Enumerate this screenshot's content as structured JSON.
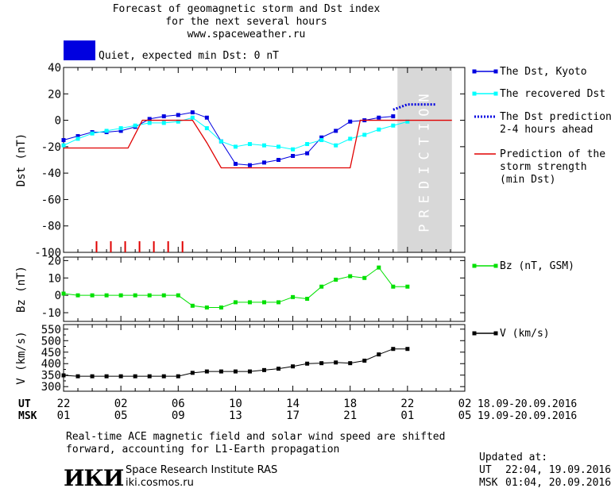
{
  "header": {
    "title_line1": "Forecast of geomagnetic storm and Dst index",
    "title_line2": "for the next several hours",
    "url": "www.spaceweather.ru",
    "status": "Quiet, expected min Dst: 0 nT",
    "status_color": "#0000e0"
  },
  "footer": {
    "note_line1": "Real-time ACE magnetic field and solar wind speed are shifted",
    "note_line2": "forward, accounting for L1-Earth propagation",
    "logo_text": "ИКИ",
    "org_name": "Space Research Institute RAS",
    "org_url": "iki.cosmos.ru",
    "updated_label": "Updated at:",
    "updated_ut_label": "UT",
    "updated_ut": "22:04, 19.09.2016",
    "updated_msk_label": "MSK",
    "updated_msk": "01:04, 20.09.2016"
  },
  "time_axis": {
    "ut_label": "UT",
    "msk_label": "MSK",
    "ut_ticks": [
      "22",
      "02",
      "06",
      "10",
      "14",
      "18",
      "22",
      "02"
    ],
    "msk_ticks": [
      "01",
      "05",
      "09",
      "13",
      "17",
      "21",
      "01",
      "05"
    ],
    "ut_range": "18.09-20.09.2016",
    "msk_range": "19.09-20.09.2016"
  },
  "chart_data": [
    {
      "type": "line",
      "ylabel": "Dst (nT)",
      "ylim": [
        -100,
        40
      ],
      "yticks": [
        40,
        20,
        0,
        -20,
        -40,
        -60,
        -80,
        -100
      ],
      "xlim": [
        0,
        28
      ],
      "prediction_label": "PREDICTION",
      "prediction_range": [
        23.3,
        27.1
      ],
      "storm_marks": [
        2.3,
        3.3,
        4.3,
        5.3,
        6.3,
        7.3,
        8.3
      ],
      "series": [
        {
          "name": "The Dst, Kyoto",
          "color": "#0000e0",
          "x": [
            0,
            1,
            2,
            3,
            4,
            5,
            6,
            7,
            8,
            9,
            10,
            11,
            12,
            13,
            14,
            15,
            16,
            17,
            18,
            19,
            20,
            21,
            22,
            23
          ],
          "y": [
            -15,
            -12,
            -9,
            -9,
            -8,
            -5,
            1,
            3,
            4,
            6,
            2,
            -16,
            -33,
            -34,
            -32,
            -30,
            -27,
            -25,
            -13,
            -8,
            -1,
            0,
            2,
            3
          ]
        },
        {
          "name": "The recovered Dst",
          "color": "#00ffff",
          "x": [
            0,
            1,
            2,
            3,
            4,
            5,
            6,
            7,
            8,
            9,
            10,
            11,
            12,
            13,
            14,
            15,
            16,
            17,
            18,
            19,
            20,
            21,
            22,
            23,
            24
          ],
          "y": [
            -19,
            -14,
            -10,
            -8,
            -6,
            -4,
            -2,
            -2,
            -1,
            2,
            -6,
            -16,
            -20,
            -18,
            -19,
            -20,
            -22,
            -18,
            -15,
            -19,
            -14,
            -11,
            -7,
            -4,
            -1
          ]
        },
        {
          "name": "The Dst prediction\n2-4 hours ahead",
          "color": "#0000e0",
          "x": [
            23,
            23.5,
            24,
            25,
            26
          ],
          "y": [
            8,
            10,
            12,
            12,
            12
          ]
        },
        {
          "name": "Prediction of the\nstorm strength\n(min Dst)",
          "color": "#e00000",
          "x": [
            0,
            4.5,
            5.5,
            9,
            10,
            11,
            20,
            20.7,
            27.1
          ],
          "y": [
            -21,
            -21,
            0,
            0,
            -17,
            -36,
            -36,
            0,
            0
          ]
        }
      ]
    },
    {
      "type": "line",
      "ylabel": "Bz (nT)",
      "ylim": [
        -15,
        22
      ],
      "yticks": [
        20,
        10,
        0,
        -10
      ],
      "xlim": [
        0,
        28
      ],
      "series": [
        {
          "name": "Bz (nT, GSM)",
          "color": "#00e000",
          "x": [
            0,
            1,
            2,
            3,
            4,
            5,
            6,
            7,
            8,
            9,
            10,
            11,
            12,
            13,
            14,
            15,
            16,
            17,
            18,
            19,
            20,
            21,
            22,
            23,
            24
          ],
          "y": [
            1,
            0,
            0,
            0,
            0,
            0,
            0,
            0,
            0,
            -6,
            -7,
            -7,
            -4,
            -4,
            -4,
            -4,
            -1,
            -2,
            5,
            9,
            11,
            10,
            16,
            5,
            5
          ]
        }
      ]
    },
    {
      "type": "line",
      "ylabel": "V (km/s)",
      "ylim": [
        280,
        570
      ],
      "yticks": [
        550,
        500,
        450,
        400,
        350,
        300
      ],
      "ytick_labels": [
        "550",
        "500",
        "450",
        "400",
        "350",
        "300"
      ],
      "ytick_minor": [
        525,
        475,
        425,
        375,
        325
      ],
      "xlim": [
        0,
        28
      ],
      "series": [
        {
          "name": "V (km/s)",
          "color": "#000000",
          "x": [
            0,
            1,
            2,
            3,
            4,
            5,
            6,
            7,
            8,
            9,
            10,
            11,
            12,
            13,
            14,
            15,
            16,
            17,
            18,
            19,
            20,
            21,
            22,
            23,
            24
          ],
          "y": [
            349,
            345,
            345,
            345,
            345,
            345,
            345,
            345,
            345,
            360,
            366,
            366,
            366,
            366,
            372,
            378,
            388,
            400,
            402,
            405,
            402,
            413,
            440,
            464,
            464
          ]
        }
      ]
    }
  ]
}
